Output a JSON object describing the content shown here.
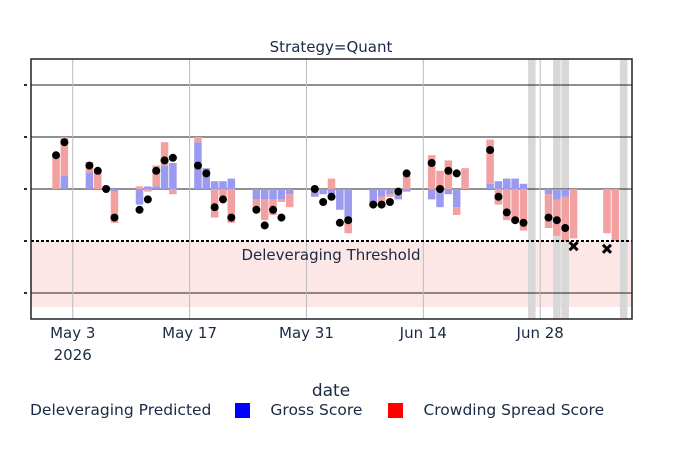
{
  "chart_data": {
    "type": "bar",
    "title": "Strategy=Quant",
    "xlabel": "date",
    "ylabel": "",
    "x_tick_labels": [
      "May 3",
      "May 17",
      "May 31",
      "Jun 14",
      "Jun 28"
    ],
    "x_tick_sublabels": [
      "2026",
      "",
      "",
      "",
      ""
    ],
    "x_tick_dates": [
      "2026-05-03",
      "2026-05-17",
      "2026-05-31",
      "2026-06-14",
      "2026-06-28"
    ],
    "xlim": [
      "2026-04-28",
      "2026-07-09"
    ],
    "ylim": [
      -2.5,
      2.5
    ],
    "grid": true,
    "threshold": {
      "label": "Deleveraging Threshold",
      "value": -1
    },
    "legend": {
      "title": "Deleveraging Predicted",
      "placement": "bottom",
      "entries": [
        {
          "name": "Gross Score",
          "color": "#0000ff"
        },
        {
          "name": "Crowding Spread Score",
          "color": "#ff0000"
        }
      ]
    },
    "shaded_dates": [
      "2026-06-27",
      "2026-06-30",
      "2026-07-01",
      "2026-07-08"
    ],
    "series": [
      {
        "name": "Gross Score",
        "color": "#9a9af0",
        "x": [
          "2026-05-01",
          "2026-05-02",
          "2026-05-05",
          "2026-05-06",
          "2026-05-07",
          "2026-05-08",
          "2026-05-11",
          "2026-05-12",
          "2026-05-13",
          "2026-05-14",
          "2026-05-15",
          "2026-05-18",
          "2026-05-19",
          "2026-05-20",
          "2026-05-21",
          "2026-05-22",
          "2026-05-25",
          "2026-05-26",
          "2026-05-27",
          "2026-05-28",
          "2026-05-29",
          "2026-06-01",
          "2026-06-02",
          "2026-06-03",
          "2026-06-04",
          "2026-06-05",
          "2026-06-08",
          "2026-06-09",
          "2026-06-10",
          "2026-06-11",
          "2026-06-12",
          "2026-06-15",
          "2026-06-16",
          "2026-06-17",
          "2026-06-18",
          "2026-06-19",
          "2026-06-22",
          "2026-06-23",
          "2026-06-24",
          "2026-06-25",
          "2026-06-26",
          "2026-06-29",
          "2026-06-30",
          "2026-07-01",
          "2026-07-02",
          "2026-07-03",
          "2026-07-06",
          "2026-07-07"
        ],
        "values": [
          0.0,
          0.25,
          0.32,
          0.0,
          0.0,
          -0.05,
          -0.3,
          0.05,
          0.05,
          0.45,
          0.5,
          0.9,
          0.4,
          0.15,
          0.15,
          0.2,
          -0.2,
          -0.2,
          -0.2,
          -0.2,
          -0.1,
          -0.15,
          -0.1,
          -0.1,
          -0.4,
          -0.6,
          -0.3,
          -0.15,
          -0.1,
          -0.2,
          -0.05,
          -0.2,
          -0.35,
          -0.1,
          -0.35,
          0.0,
          0.1,
          0.15,
          0.2,
          0.2,
          0.1,
          -0.1,
          -0.2,
          -0.15,
          0.0,
          0.0,
          0.0,
          0.0
        ]
      },
      {
        "name": "Crowding Spread Score",
        "color": "#f3a0a0",
        "x": [
          "2026-05-01",
          "2026-05-02",
          "2026-05-05",
          "2026-05-06",
          "2026-05-07",
          "2026-05-08",
          "2026-05-11",
          "2026-05-12",
          "2026-05-13",
          "2026-05-14",
          "2026-05-15",
          "2026-05-18",
          "2026-05-19",
          "2026-05-20",
          "2026-05-21",
          "2026-05-22",
          "2026-05-25",
          "2026-05-26",
          "2026-05-27",
          "2026-05-28",
          "2026-05-29",
          "2026-06-01",
          "2026-06-02",
          "2026-06-03",
          "2026-06-04",
          "2026-06-05",
          "2026-06-08",
          "2026-06-09",
          "2026-06-10",
          "2026-06-11",
          "2026-06-12",
          "2026-06-15",
          "2026-06-16",
          "2026-06-17",
          "2026-06-18",
          "2026-06-19",
          "2026-06-22",
          "2026-06-23",
          "2026-06-24",
          "2026-06-25",
          "2026-06-26",
          "2026-06-29",
          "2026-06-30",
          "2026-07-01",
          "2026-07-02",
          "2026-07-03",
          "2026-07-06",
          "2026-07-07"
        ],
        "values": [
          0.65,
          0.75,
          0.2,
          0.35,
          0.05,
          -0.6,
          0.05,
          -0.05,
          0.4,
          0.45,
          -0.1,
          0.1,
          0.0,
          -0.55,
          -0.15,
          -0.65,
          -0.2,
          -0.4,
          -0.3,
          -0.05,
          -0.25,
          0.0,
          0.0,
          0.2,
          0.0,
          -0.25,
          0.0,
          -0.2,
          -0.05,
          0.0,
          0.25,
          0.65,
          0.35,
          0.55,
          -0.15,
          0.4,
          0.85,
          -0.3,
          -0.6,
          -0.6,
          -0.8,
          -0.65,
          -0.7,
          -0.85,
          -0.95,
          0.0,
          -0.85,
          -1.0
        ]
      },
      {
        "name": "Deleveraging Indicator",
        "type": "scatter",
        "x": [
          "2026-05-01",
          "2026-05-02",
          "2026-05-05",
          "2026-05-06",
          "2026-05-07",
          "2026-05-08",
          "2026-05-11",
          "2026-05-12",
          "2026-05-13",
          "2026-05-14",
          "2026-05-15",
          "2026-05-18",
          "2026-05-19",
          "2026-05-20",
          "2026-05-21",
          "2026-05-22",
          "2026-05-25",
          "2026-05-26",
          "2026-05-27",
          "2026-05-28",
          "2026-06-01",
          "2026-06-02",
          "2026-06-03",
          "2026-06-04",
          "2026-06-05",
          "2026-06-08",
          "2026-06-09",
          "2026-06-10",
          "2026-06-11",
          "2026-06-12",
          "2026-06-15",
          "2026-06-16",
          "2026-06-17",
          "2026-06-18",
          "2026-06-22",
          "2026-06-23",
          "2026-06-24",
          "2026-06-25",
          "2026-06-26",
          "2026-06-29",
          "2026-06-30",
          "2026-07-01",
          "2026-07-02",
          "2026-07-06"
        ],
        "values": [
          0.65,
          0.9,
          0.45,
          0.35,
          0.0,
          -0.55,
          -0.4,
          -0.2,
          0.35,
          0.55,
          0.6,
          0.45,
          0.3,
          -0.35,
          -0.2,
          -0.55,
          -0.4,
          -0.7,
          -0.4,
          -0.55,
          0.0,
          -0.25,
          -0.15,
          -0.65,
          -0.6,
          -0.3,
          -0.3,
          -0.25,
          -0.05,
          0.3,
          0.5,
          0.0,
          0.35,
          0.3,
          0.75,
          -0.15,
          -0.45,
          -0.6,
          -0.65,
          -0.55,
          -0.6,
          -0.75,
          -1.1,
          -1.15
        ],
        "markers": [
          "dot",
          "dot",
          "dot",
          "dot",
          "dot",
          "dot",
          "dot",
          "dot",
          "dot",
          "dot",
          "dot",
          "dot",
          "dot",
          "dot",
          "dot",
          "dot",
          "dot",
          "dot",
          "dot",
          "dot",
          "dot",
          "dot",
          "dot",
          "dot",
          "dot",
          "dot",
          "dot",
          "dot",
          "dot",
          "dot",
          "dot",
          "dot",
          "dot",
          "dot",
          "dot",
          "dot",
          "dot",
          "dot",
          "dot",
          "dot",
          "dot",
          "dot",
          "x",
          "x"
        ]
      }
    ]
  }
}
